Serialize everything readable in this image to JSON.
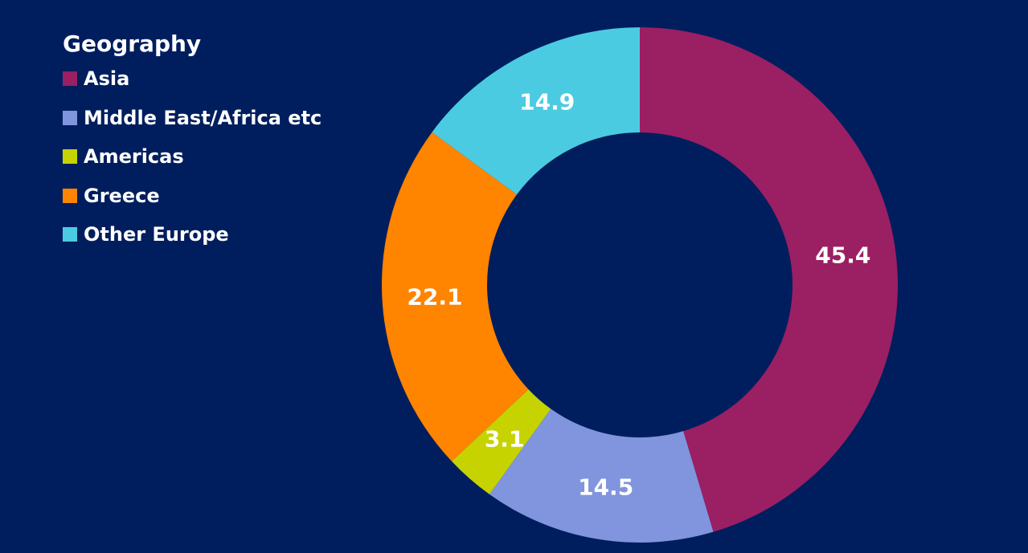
{
  "colors": {
    "background": "#001E5E",
    "text": "#FFFFFF"
  },
  "chart_data": {
    "type": "pie",
    "donut": true,
    "legend_title": "Geography",
    "legend_position": "top-left",
    "categories": [
      "Asia",
      "Middle East/Africa etc",
      "Americas",
      "Greece",
      "Other Europe"
    ],
    "values": [
      45.4,
      14.5,
      3.1,
      22.1,
      14.9
    ],
    "data_labels": [
      "45.4",
      "14.5",
      "3.1",
      "22.1",
      "14.9"
    ],
    "colors": [
      "#9B1F63",
      "#8095DE",
      "#C6D300",
      "#FF8400",
      "#4BCBE1"
    ],
    "start": "top",
    "direction": "clockwise"
  }
}
